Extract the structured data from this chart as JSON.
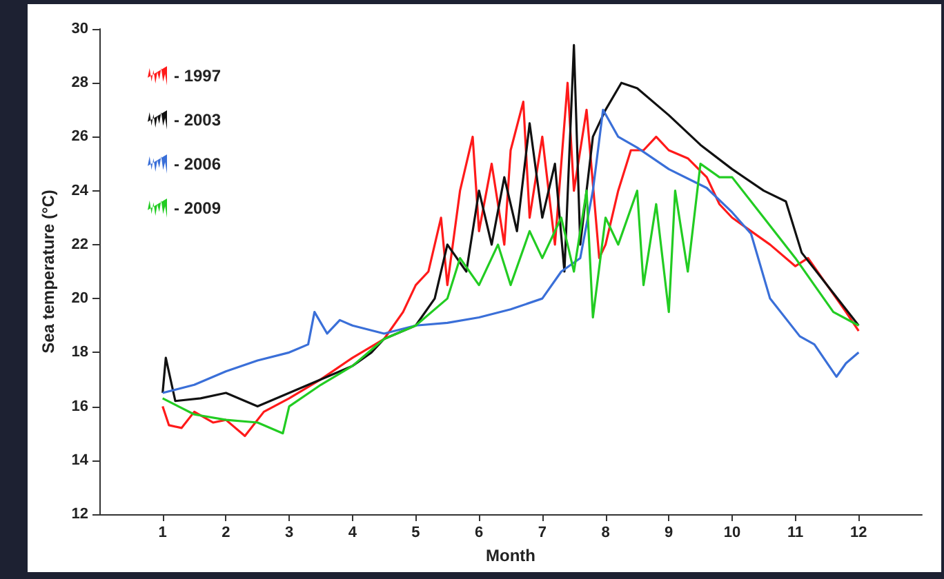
{
  "chart_data": {
    "type": "line",
    "xlabel": "Month",
    "ylabel": "Sea temperature (°C)",
    "xlim": [
      0,
      13
    ],
    "xticks": [
      1,
      2,
      3,
      4,
      5,
      6,
      7,
      8,
      9,
      10,
      11,
      12
    ],
    "ylim": [
      12,
      30
    ],
    "yticks": [
      12,
      14,
      16,
      18,
      20,
      22,
      24,
      26,
      28,
      30
    ],
    "grid": false,
    "legend": "top left",
    "marker": "none",
    "line_style": "solid",
    "series": [
      {
        "name": "- 1997",
        "color": "#ff1a1a",
        "x": [
          1,
          1.1,
          1.3,
          1.5,
          1.8,
          2,
          2.3,
          2.6,
          3,
          3.5,
          4,
          4.5,
          4.8,
          5,
          5.2,
          5.4,
          5.5,
          5.7,
          5.9,
          6,
          6.2,
          6.4,
          6.5,
          6.7,
          6.8,
          7,
          7.2,
          7.4,
          7.5,
          7.7,
          7.9,
          8,
          8.2,
          8.4,
          8.6,
          8.8,
          9,
          9.3,
          9.6,
          9.8,
          10,
          10.3,
          10.6,
          11,
          11.2,
          11.5,
          11.8,
          12
        ],
        "values": [
          16,
          15.3,
          15.2,
          15.8,
          15.4,
          15.5,
          14.9,
          15.8,
          16.3,
          17,
          17.8,
          18.5,
          19.5,
          20.5,
          21,
          23,
          20.5,
          24,
          26,
          22.5,
          25,
          22,
          25.5,
          27.3,
          23,
          26,
          22,
          28,
          24,
          27,
          21.5,
          22,
          24,
          25.5,
          25.5,
          26,
          25.5,
          25.2,
          24.5,
          23.5,
          23,
          22.5,
          22,
          21.2,
          21.5,
          20.5,
          19.5,
          18.8
        ]
      },
      {
        "name": "- 2003",
        "color": "#111111",
        "x": [
          1,
          1.05,
          1.2,
          1.6,
          2,
          2.5,
          3,
          3.5,
          4,
          4.3,
          4.5,
          5,
          5.3,
          5.5,
          5.8,
          6,
          6.2,
          6.4,
          6.6,
          6.8,
          7,
          7.2,
          7.35,
          7.5,
          7.6,
          7.8,
          8,
          8.25,
          8.5,
          9,
          9.5,
          10,
          10.5,
          10.85,
          11.1,
          11.5,
          12
        ],
        "values": [
          16.5,
          17.8,
          16.2,
          16.3,
          16.5,
          16,
          16.5,
          17,
          17.5,
          18,
          18.5,
          19,
          20,
          22,
          21,
          24,
          22,
          24.5,
          22.5,
          26.5,
          23,
          25,
          21,
          29.4,
          22,
          26,
          27,
          28,
          27.8,
          26.8,
          25.7,
          24.8,
          24,
          23.6,
          21.7,
          20.5,
          19
        ]
      },
      {
        "name": "- 2006",
        "color": "#3a6fd8",
        "x": [
          1,
          1.5,
          2,
          2.5,
          3,
          3.3,
          3.4,
          3.6,
          3.8,
          4,
          4.5,
          5,
          5.5,
          6,
          6.5,
          7,
          7.3,
          7.6,
          7.8,
          7.96,
          8.2,
          8.5,
          9,
          9.6,
          10,
          10.3,
          10.6,
          11.07,
          11.3,
          11.65,
          11.8,
          12
        ],
        "values": [
          16.5,
          16.8,
          17.3,
          17.7,
          18,
          18.3,
          19.5,
          18.7,
          19.2,
          19,
          18.7,
          19,
          19.1,
          19.3,
          19.6,
          20,
          21,
          21.5,
          24,
          27,
          26,
          25.6,
          24.8,
          24.1,
          23.2,
          22.4,
          20,
          18.6,
          18.3,
          17.1,
          17.6,
          18
        ]
      },
      {
        "name": "- 2009",
        "color": "#22cc22",
        "x": [
          1,
          1.5,
          2,
          2.5,
          2.9,
          3,
          3.5,
          4,
          4.5,
          5,
          5.5,
          5.7,
          6,
          6.3,
          6.5,
          6.8,
          7,
          7.3,
          7.5,
          7.7,
          7.8,
          8,
          8.2,
          8.5,
          8.6,
          8.8,
          9,
          9.1,
          9.3,
          9.5,
          9.8,
          10,
          10.5,
          11,
          11.3,
          11.6,
          12
        ],
        "values": [
          16.3,
          15.7,
          15.5,
          15.4,
          15,
          16,
          16.8,
          17.5,
          18.5,
          19,
          20,
          21.5,
          20.5,
          22,
          20.5,
          22.5,
          21.5,
          23,
          21,
          24,
          19.3,
          23,
          22,
          24,
          20.5,
          23.5,
          19.5,
          24,
          21,
          25,
          24.5,
          24.5,
          23,
          21.5,
          20.5,
          19.5,
          19
        ]
      }
    ]
  }
}
